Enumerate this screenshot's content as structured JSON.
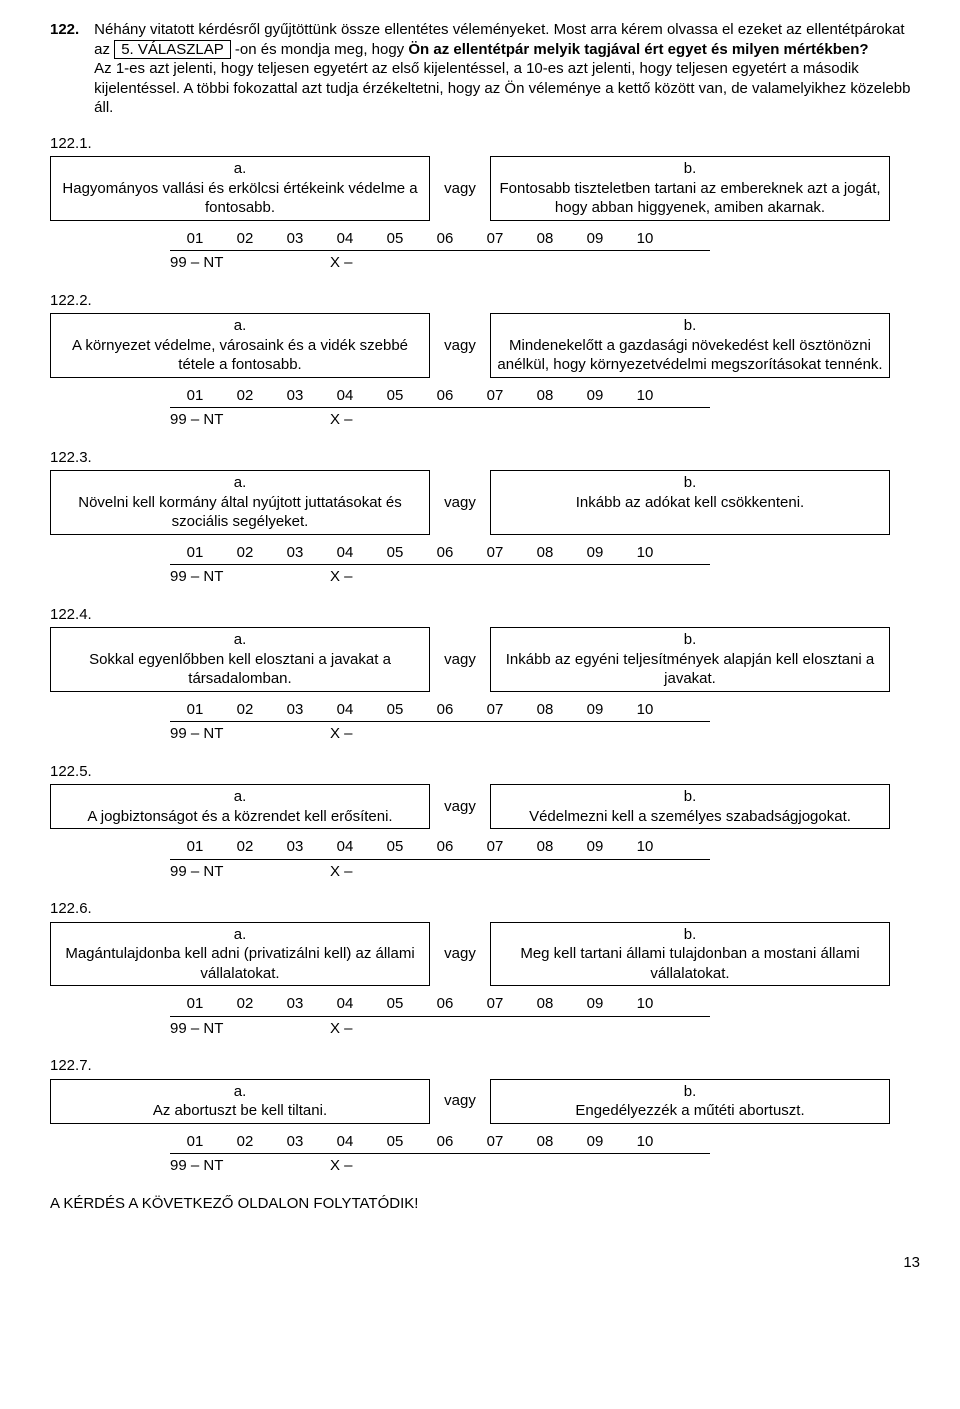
{
  "page_number": "13",
  "intro": {
    "qnum": "122.",
    "line1a": "Néhány vitatott kérdésről gyűjtöttünk össze ellentétes véleményeket. Most arra kérem olvassa el ezeket az ellentétpárokat az",
    "box": "5. VÁLASZLAP",
    "line1b": "-on és mondja meg, hogy",
    "line1c": "Ön az ellentétpár melyik tagjával ért egyet és milyen mértékben?",
    "line2": "Az 1-es azt jelenti, hogy teljesen egyetért az első kijelentéssel, a 10-es azt jelenti, hogy teljesen egyetért a második kijelentéssel. A többi fokozattal azt tudja érzékeltetni, hogy az Ön véleménye a kettő között van, de valamelyikhez közelebb áll."
  },
  "labels": {
    "a": "a.",
    "b": "b.",
    "vagy": "vagy"
  },
  "scale": {
    "vals": [
      "01",
      "02",
      "03",
      "04",
      "05",
      "06",
      "07",
      "08",
      "09",
      "10"
    ],
    "extra1": "99 – NT",
    "extra2": "X –"
  },
  "items": {
    "q1": {
      "num": "122.1.",
      "a": "Hagyományos vallási és erkölcsi értékeink védelme a fontosabb.",
      "b": "Fontosabb tiszteletben tartani az embereknek azt a jogát, hogy abban higgyenek, amiben akarnak."
    },
    "q2": {
      "num": "122.2.",
      "a": "A környezet védelme, városaink és a vidék szebbé tétele a fontosabb.",
      "b": "Mindenekelőtt a gazdasági növekedést kell ösztönözni anélkül, hogy környezetvédelmi megszorításokat tennénk."
    },
    "q3": {
      "num": "122.3.",
      "a": "Növelni kell kormány által nyújtott juttatásokat és szociális segélyeket.",
      "b": "Inkább az adókat kell csökkenteni."
    },
    "q4": {
      "num": "122.4.",
      "a": "Sokkal egyenlőbben kell elosztani a javakat a társadalomban.",
      "b": "Inkább az egyéni teljesítmények alapján kell elosztani a javakat."
    },
    "q5": {
      "num": "122.5.",
      "a": "A jogbiztonságot és a közrendet kell erősíteni.",
      "b": "Védelmezni kell a személyes szabadságjogokat."
    },
    "q6": {
      "num": "122.6.",
      "a": "Magántulajdonba kell adni (privatizálni kell) az állami vállalatokat.",
      "b": "Meg kell tartani állami tulajdonban a mostani állami vállalatokat."
    },
    "q7": {
      "num": "122.7.",
      "a": "Az abortuszt be kell tiltani.",
      "b": "Engedélyezzék a műtéti abortuszt."
    }
  },
  "continue": "A KÉRDÉS A KÖVETKEZŐ OLDALON FOLYTATÓDIK!"
}
